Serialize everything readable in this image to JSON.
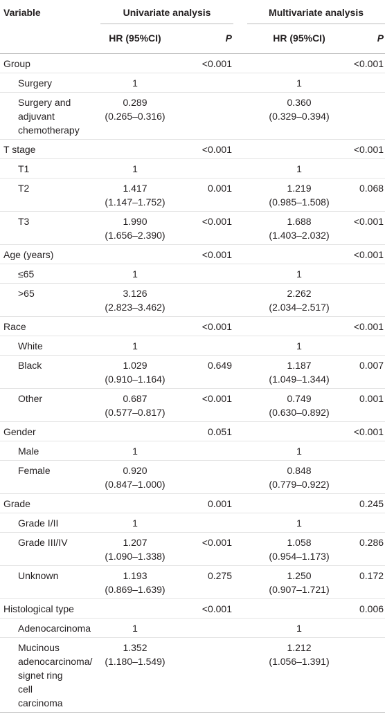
{
  "table": {
    "header": {
      "variable": "Variable",
      "univariate": "Univariate analysis",
      "multivariate": "Multivariate analysis",
      "uni_hr": "HR (95%CI)",
      "uni_p": "P",
      "multi_hr": "HR (95%CI)",
      "multi_p": "P"
    },
    "groups": [
      {
        "label": "Group",
        "uni_p": "<0.001",
        "multi_p": "<0.001",
        "items": [
          {
            "label": "Surgery",
            "uni_hr": "1",
            "multi_hr": "1"
          },
          {
            "label": "Surgery and\nadjuvant\nchemotherapy",
            "uni_hr": "0.289\n(0.265–0.316)",
            "multi_hr": "0.360\n(0.329–0.394)"
          }
        ]
      },
      {
        "label": "T stage",
        "uni_p": "<0.001",
        "multi_p": "<0.001",
        "items": [
          {
            "label": "T1",
            "uni_hr": "1",
            "multi_hr": "1"
          },
          {
            "label": "T2",
            "uni_hr": "1.417\n(1.147–1.752)",
            "uni_p": "0.001",
            "multi_hr": "1.219\n(0.985–1.508)",
            "multi_p": "0.068"
          },
          {
            "label": "T3",
            "uni_hr": "1.990\n(1.656–2.390)",
            "uni_p": "<0.001",
            "multi_hr": "1.688\n(1.403–2.032)",
            "multi_p": "<0.001"
          }
        ]
      },
      {
        "label": "Age (years)",
        "uni_p": "<0.001",
        "multi_p": "<0.001",
        "items": [
          {
            "label": "≤65",
            "uni_hr": "1",
            "multi_hr": "1"
          },
          {
            "label": ">65",
            "uni_hr": "3.126\n(2.823–3.462)",
            "multi_hr": "2.262\n(2.034–2.517)"
          }
        ]
      },
      {
        "label": "Race",
        "uni_p": "<0.001",
        "multi_p": "<0.001",
        "items": [
          {
            "label": "White",
            "uni_hr": "1",
            "multi_hr": "1"
          },
          {
            "label": "Black",
            "uni_hr": "1.029\n(0.910–1.164)",
            "uni_p": "0.649",
            "multi_hr": "1.187\n(1.049–1.344)",
            "multi_p": "0.007"
          },
          {
            "label": "Other",
            "uni_hr": "0.687\n(0.577–0.817)",
            "uni_p": "<0.001",
            "multi_hr": "0.749\n(0.630–0.892)",
            "multi_p": "0.001"
          }
        ]
      },
      {
        "label": "Gender",
        "uni_p": "0.051",
        "multi_p": "<0.001",
        "items": [
          {
            "label": "Male",
            "uni_hr": "1",
            "multi_hr": "1"
          },
          {
            "label": "Female",
            "uni_hr": "0.920\n(0.847–1.000)",
            "multi_hr": "0.848\n(0.779–0.922)"
          }
        ]
      },
      {
        "label": "Grade",
        "uni_p": "0.001",
        "multi_p": "0.245",
        "items": [
          {
            "label": "Grade I/II",
            "uni_hr": "1",
            "multi_hr": "1"
          },
          {
            "label": "Grade III/IV",
            "uni_hr": "1.207\n(1.090–1.338)",
            "uni_p": "<0.001",
            "multi_hr": "1.058\n(0.954–1.173)",
            "multi_p": "0.286"
          },
          {
            "label": "Unknown",
            "uni_hr": "1.193\n(0.869–1.639)",
            "uni_p": "0.275",
            "multi_hr": "1.250\n(0.907–1.721)",
            "multi_p": "0.172"
          }
        ]
      },
      {
        "label": "Histological type",
        "uni_p": "<0.001",
        "multi_p": "0.006",
        "items": [
          {
            "label": "Adenocarcinoma",
            "uni_hr": "1",
            "multi_hr": "1"
          },
          {
            "label": "Mucinous\nadenocarcinoma/\nsignet ring\ncell\ncarcinoma",
            "uni_hr": "1.352\n(1.180–1.549)",
            "multi_hr": "1.212\n(1.056–1.391)"
          }
        ]
      }
    ]
  }
}
